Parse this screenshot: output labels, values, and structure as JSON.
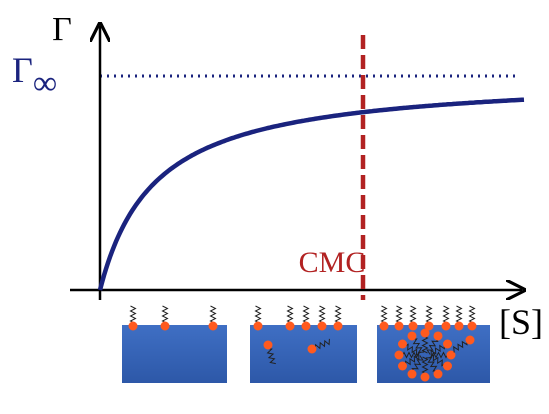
{
  "axes": {
    "y_label": "Γ",
    "x_label": "[S]"
  },
  "annotations": {
    "saturation_symbol": "Γ",
    "saturation_subscript": "∞",
    "cmc": "CMC"
  }
}
